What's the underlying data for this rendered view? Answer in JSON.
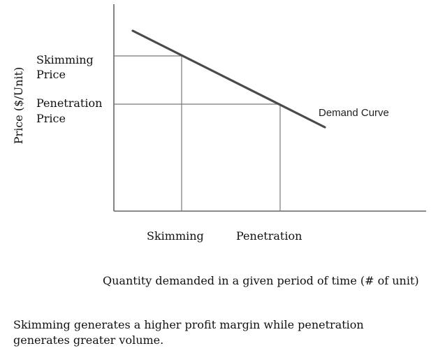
{
  "chart_data": {
    "type": "line",
    "title": "",
    "ylabel": "Price ($/Unit)",
    "xlabel": "Quantity demanded in a given period of time (# of unit)",
    "x_tick_labels": [
      "Skimming",
      "Penetration"
    ],
    "y_tick_labels": [
      {
        "line1": "Skimming",
        "line2": "Price"
      },
      {
        "line1": "Penetration",
        "line2": "Price"
      }
    ],
    "series": [
      {
        "name": "Demand Curve",
        "color": "#4a4a4a"
      }
    ],
    "grid": false
  },
  "caption": {
    "line1": "Skimming generates a higher profit margin while penetration",
    "line2": "generates greater volume."
  }
}
